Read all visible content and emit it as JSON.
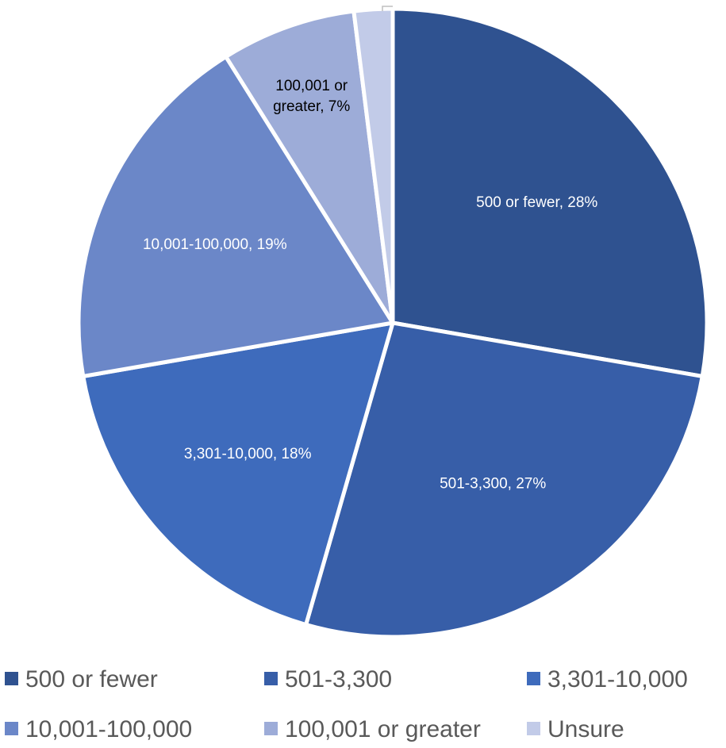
{
  "chart_data": {
    "type": "pie",
    "title": "",
    "legend_position": "bottom",
    "start_angle_deg": 0,
    "direction": "clockwise",
    "slices": [
      {
        "name": "500 or fewer",
        "value": 28,
        "label": "500 or fewer, 28%",
        "color": "#2F5290",
        "label_color": "#FFFFFF"
      },
      {
        "name": "501-3,300",
        "value": 27,
        "label": "501-3,300, 27%",
        "color": "#375EA8",
        "label_color": "#FFFFFF"
      },
      {
        "name": "3,301-10,000",
        "value": 18,
        "label": "3,301-10,000, 18%",
        "color": "#3E6BBC",
        "label_color": "#FFFFFF"
      },
      {
        "name": "10,001-100,000",
        "value": 19,
        "label": "10,001-100,000, 19%",
        "color": "#6B87C8",
        "label_color": "#FFFFFF"
      },
      {
        "name": "100,001 or greater",
        "value": 7,
        "label": "100,001 or greater, 7%",
        "label_lines": [
          "100,001 or",
          "greater, 7%"
        ],
        "color": "#9DACD8",
        "label_color": "#000000"
      },
      {
        "name": "Unsure",
        "value": 2,
        "label": "",
        "color": "#C2CBE8",
        "label_color": "#000000"
      }
    ]
  }
}
